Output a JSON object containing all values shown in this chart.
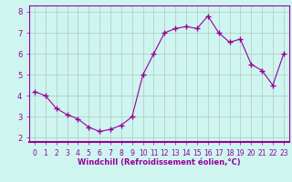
{
  "x": [
    0,
    1,
    2,
    3,
    4,
    5,
    6,
    7,
    8,
    9,
    10,
    11,
    12,
    13,
    14,
    15,
    16,
    17,
    18,
    19,
    20,
    21,
    22,
    23
  ],
  "y": [
    4.2,
    4.0,
    3.4,
    3.1,
    2.9,
    2.5,
    2.3,
    2.4,
    2.6,
    3.0,
    5.0,
    6.0,
    7.0,
    7.2,
    7.3,
    7.2,
    7.8,
    7.0,
    6.55,
    6.7,
    5.5,
    5.2,
    4.5,
    6.0
  ],
  "line_color": "#990099",
  "marker": "+",
  "marker_size": 4,
  "bg_color": "#cef5f0",
  "grid_color": "#b0c8c0",
  "xlabel": "Windchill (Refroidissement éolien,°C)",
  "xlabel_color": "#990099",
  "tick_color": "#990099",
  "axis_color": "#990099",
  "ylim": [
    1.8,
    8.3
  ],
  "xlim": [
    -0.5,
    23.5
  ],
  "yticks": [
    2,
    3,
    4,
    5,
    6,
    7,
    8
  ],
  "xticks": [
    0,
    1,
    2,
    3,
    4,
    5,
    6,
    7,
    8,
    9,
    10,
    11,
    12,
    13,
    14,
    15,
    16,
    17,
    18,
    19,
    20,
    21,
    22,
    23
  ],
  "tick_fontsize": 5.5,
  "xlabel_fontsize": 6.0
}
